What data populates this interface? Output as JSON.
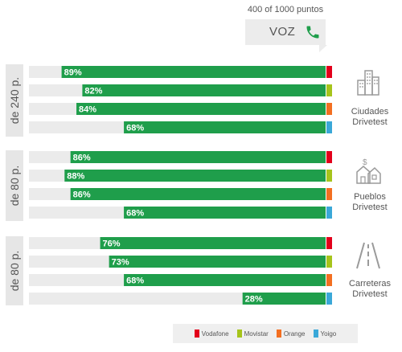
{
  "header": {
    "caption": "400 of 1000 puntos",
    "title": "VOZ"
  },
  "operators": [
    {
      "name": "Vodafone",
      "color": "#e3001b"
    },
    {
      "name": "Movistar",
      "color": "#a6c41b"
    },
    {
      "name": "Orange",
      "color": "#f36f21"
    },
    {
      "name": "Yoigo",
      "color": "#3aa8d8"
    }
  ],
  "colors": {
    "bar": "#1f9e4b",
    "track": "#ebebeb"
  },
  "chart_data": {
    "type": "bar",
    "orientation": "horizontal",
    "groups": [
      {
        "tab_label": "de 240 p.",
        "category": [
          "Ciudades",
          "Drivetest"
        ],
        "values": [
          89,
          82,
          84,
          68
        ]
      },
      {
        "tab_label": "de 80 p.",
        "category": [
          "Pueblos",
          "Drivetest"
        ],
        "values": [
          86,
          88,
          86,
          68
        ]
      },
      {
        "tab_label": "de 80 p.",
        "category": [
          "Carreteras",
          "Drivetest"
        ],
        "values": [
          76,
          73,
          68,
          28
        ]
      }
    ],
    "series_order": [
      "Vodafone",
      "Movistar",
      "Orange",
      "Yoigo"
    ],
    "value_suffix": "%",
    "xlim": [
      0,
      100
    ],
    "legend": "bottom-right"
  }
}
